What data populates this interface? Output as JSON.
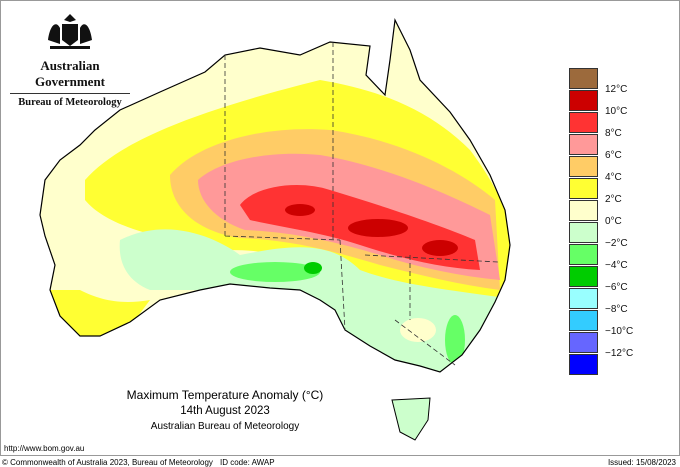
{
  "header": {
    "government": "Australian Government",
    "agency": "Bureau of Meteorology"
  },
  "title": {
    "line1": "Maximum Temperature Anomaly (°C)",
    "line2": "14th August 2023",
    "line3": "Australian Bureau of Meteorology"
  },
  "legend": {
    "colors": [
      "#9c6a3c",
      "#cc0000",
      "#ff3333",
      "#ff9999",
      "#ffcc66",
      "#ffff33",
      "#ffffcc",
      "#ccffcc",
      "#66ff66",
      "#00cc00",
      "#99ffff",
      "#33ccff",
      "#6666ff",
      "#0000ff"
    ],
    "labels": [
      "12°C",
      "10°C",
      "8°C",
      "6°C",
      "4°C",
      "2°C",
      "0°C",
      "−2°C",
      "−4°C",
      "−6°C",
      "−8°C",
      "−10°C",
      "−12°C"
    ]
  },
  "footer": {
    "url": "http://www.bom.gov.au",
    "copyright": "© Commonwealth of Australia 2023, Bureau of Meteorology",
    "id_code": "ID code: AWAP",
    "issued": "Issued: 15/08/2023"
  }
}
